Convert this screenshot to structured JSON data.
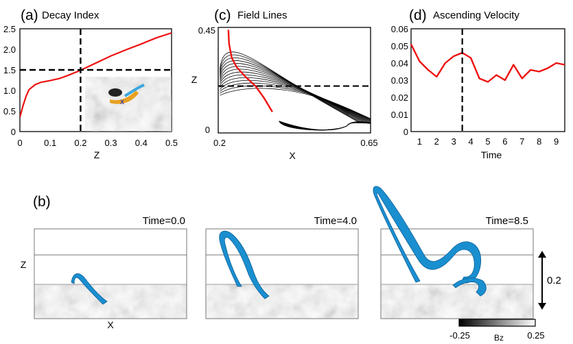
{
  "panels": {
    "a": {
      "letter": "(a)",
      "title": "Decay Index"
    },
    "b": {
      "letter": "(b)"
    },
    "c": {
      "letter": "(c)",
      "title": "Field Lines"
    },
    "d": {
      "letter": "(d)",
      "title": "Ascending Velocity"
    }
  },
  "colors": {
    "curve": "#ee1111",
    "rope": "#1a8fd0",
    "rope_dark": "#0b5f96",
    "dashed": "#000000"
  },
  "chart_data": [
    {
      "id": "a",
      "type": "line",
      "title": "Decay Index",
      "xlabel": "Z",
      "ylabel": "",
      "xlim": [
        0,
        0.5
      ],
      "ylim": [
        0,
        2.5
      ],
      "xticks": [
        0,
        0.1,
        0.2,
        0.3,
        0.4,
        0.5
      ],
      "xtick_labels": [
        "0",
        "0.1",
        "0.2",
        "0.3",
        "0.4",
        "0.5"
      ],
      "yticks": [
        0,
        0.5,
        1.0,
        1.5,
        2.0,
        2.5
      ],
      "ytick_labels": [
        "0",
        "0.5",
        "1.0",
        "1.5",
        "2.0",
        "2.5"
      ],
      "series": [
        {
          "name": "decay index",
          "x": [
            0,
            0.01,
            0.02,
            0.03,
            0.05,
            0.07,
            0.1,
            0.13,
            0.16,
            0.19,
            0.22,
            0.26,
            0.3,
            0.35,
            0.4,
            0.45,
            0.5
          ],
          "y": [
            0.35,
            0.62,
            0.85,
            1.02,
            1.14,
            1.2,
            1.24,
            1.29,
            1.37,
            1.46,
            1.56,
            1.7,
            1.84,
            1.99,
            2.13,
            2.28,
            2.4
          ]
        }
      ],
      "reference_lines": {
        "x": 0.2,
        "y": 1.5
      },
      "inset": {
        "marker": "x"
      }
    },
    {
      "id": "c",
      "type": "line",
      "title": "Field Lines",
      "xlabel": "X",
      "ylabel": "Z",
      "xlim": [
        0.2,
        0.65
      ],
      "ylim": [
        0,
        0.45
      ],
      "xtick_labels": [
        "0.2",
        "0.65"
      ],
      "ytick_labels": [
        "0",
        "0.45"
      ],
      "reference_lines": {
        "y": 0.2
      },
      "highlighted_line": {
        "x": [
          0.23,
          0.232,
          0.24,
          0.255,
          0.28,
          0.31,
          0.335,
          0.36
        ],
        "y": [
          0.44,
          0.38,
          0.32,
          0.28,
          0.24,
          0.2,
          0.15,
          0.09
        ]
      }
    },
    {
      "id": "d",
      "type": "line",
      "title": "Ascending Velocity",
      "xlabel": "Time",
      "ylabel": "",
      "xlim": [
        0.5,
        9.5
      ],
      "ylim": [
        0,
        0.06
      ],
      "xticks": [
        1,
        2,
        3,
        4,
        5,
        6,
        7,
        8,
        9
      ],
      "xtick_labels": [
        "1",
        "2",
        "3",
        "4",
        "5",
        "6",
        "7",
        "8",
        "9"
      ],
      "yticks": [
        0,
        0.01,
        0.02,
        0.03,
        0.04,
        0.05,
        0.06
      ],
      "ytick_labels": [
        "0",
        "0.01",
        "0.02",
        "0.03",
        "0.04",
        "0.05",
        "0.06"
      ],
      "series": [
        {
          "name": "ascending velocity",
          "x": [
            0.5,
            1.0,
            1.5,
            2.0,
            2.5,
            3.0,
            3.5,
            4.0,
            4.5,
            5.0,
            5.5,
            6.0,
            6.5,
            7.0,
            7.5,
            8.0,
            8.5,
            9.0,
            9.5
          ],
          "y": [
            0.051,
            0.041,
            0.036,
            0.032,
            0.04,
            0.044,
            0.046,
            0.043,
            0.031,
            0.029,
            0.033,
            0.03,
            0.039,
            0.031,
            0.036,
            0.035,
            0.037,
            0.04,
            0.039
          ]
        }
      ],
      "reference_lines": {
        "x": 3.5
      }
    },
    {
      "id": "b",
      "type": "other",
      "snapshots": [
        {
          "label": "Time=0.0",
          "time": 0.0
        },
        {
          "label": "Time=4.0",
          "time": 4.0
        },
        {
          "label": "Time=8.5",
          "time": 8.5
        }
      ],
      "axis_labels": {
        "x": "X",
        "z": "Z"
      },
      "scale_bar": {
        "label": "0.2",
        "value": 0.2
      },
      "colorbar": {
        "label": "Bz",
        "min": -0.25,
        "max": 0.25,
        "min_label": "-0.25",
        "max_label": "0.25"
      }
    }
  ]
}
